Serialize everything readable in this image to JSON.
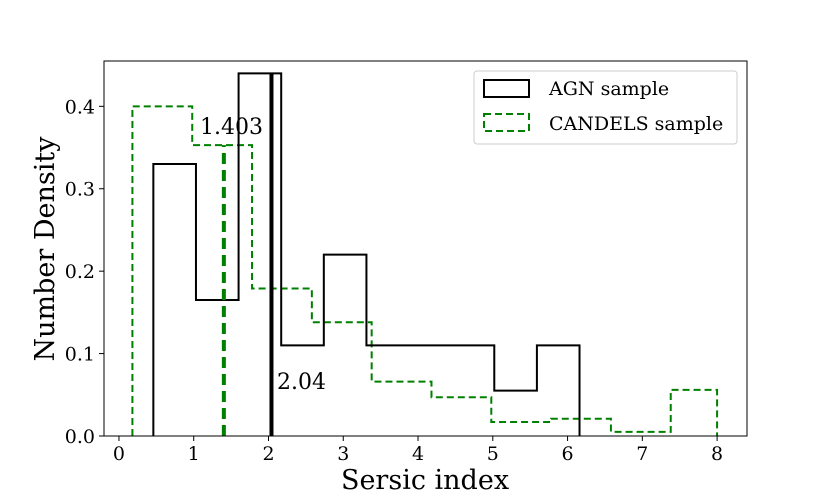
{
  "chart_data": {
    "type": "histogram",
    "xlabel": "Sersic index",
    "ylabel": "Number Density",
    "xlim": [
      -0.2,
      8.4
    ],
    "ylim": [
      0,
      0.455
    ],
    "xticks": [
      "0",
      "1",
      "2",
      "3",
      "4",
      "5",
      "6",
      "7",
      "8"
    ],
    "xtick_values": [
      0,
      1,
      2,
      3,
      4,
      5,
      6,
      7,
      8
    ],
    "yticks": [
      "0.0",
      "0.1",
      "0.2",
      "0.3",
      "0.4"
    ],
    "ytick_values": [
      0.0,
      0.1,
      0.2,
      0.3,
      0.4
    ],
    "legend_position": "top-right",
    "series": [
      {
        "name": "AGN sample",
        "style": "solid",
        "color": "#000000",
        "bin_edges": [
          0.46,
          1.03,
          1.6,
          2.17,
          2.74,
          3.31,
          3.88,
          4.45,
          5.02,
          5.59,
          6.16
        ],
        "values": [
          0.33,
          0.165,
          0.44,
          0.11,
          0.22,
          0.11,
          0.11,
          0.11,
          0.055,
          0.11
        ]
      },
      {
        "name": "CANDELS sample",
        "style": "dashed",
        "color": "#008000",
        "bin_edges": [
          0.18,
          0.98,
          1.78,
          2.58,
          3.38,
          4.18,
          4.98,
          5.78,
          6.58,
          7.38,
          8.0
        ],
        "values": [
          0.4,
          0.353,
          0.179,
          0.138,
          0.066,
          0.047,
          0.017,
          0.021,
          0.005,
          0.056
        ]
      }
    ],
    "medians": [
      {
        "series": "CANDELS sample",
        "value": 1.403,
        "label": "1.403",
        "color": "#008000",
        "style": "dashed"
      },
      {
        "series": "AGN sample",
        "value": 2.04,
        "label": "2.04",
        "color": "#000000",
        "style": "solid"
      }
    ]
  }
}
